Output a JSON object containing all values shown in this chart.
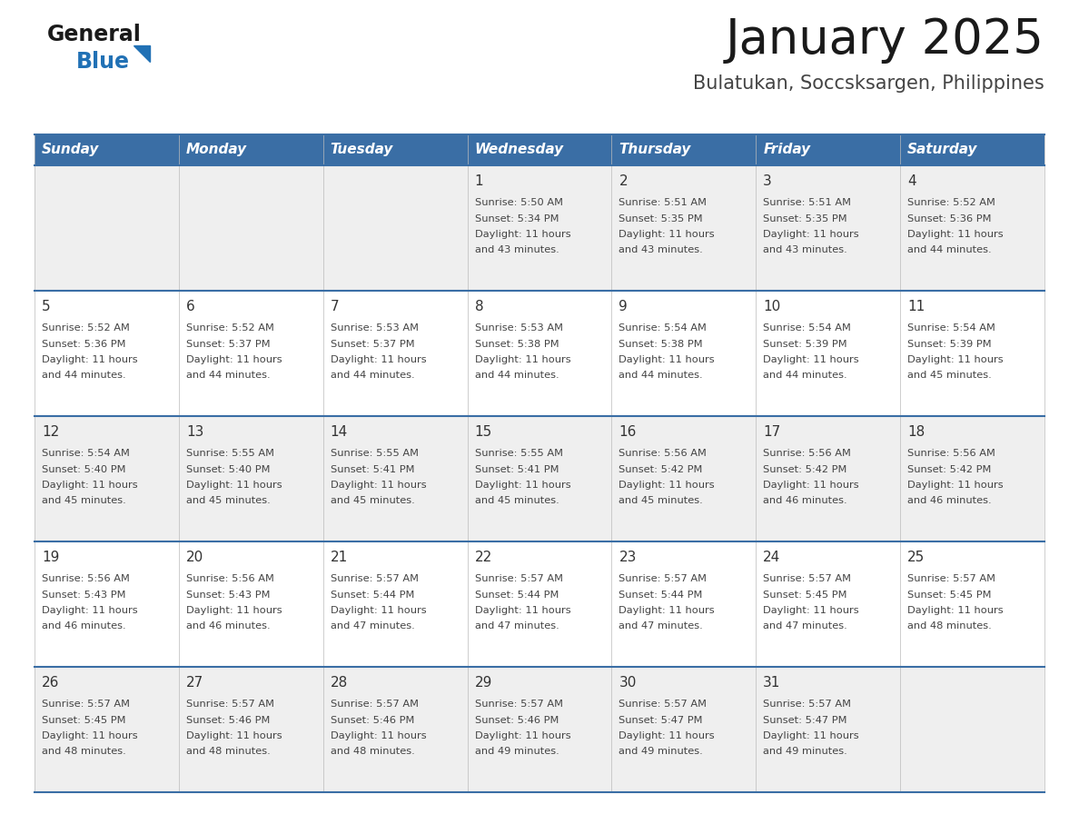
{
  "title": "January 2025",
  "subtitle": "Bulatukan, Soccsksargen, Philippines",
  "header_bg_color": "#3A6EA5",
  "header_text_color": "#FFFFFF",
  "days_of_week": [
    "Sunday",
    "Monday",
    "Tuesday",
    "Wednesday",
    "Thursday",
    "Friday",
    "Saturday"
  ],
  "row_bg_colors": [
    "#EFEFEF",
    "#FFFFFF",
    "#EFEFEF",
    "#FFFFFF",
    "#EFEFEF"
  ],
  "divider_color": "#3A6EA5",
  "date_text_color": "#333333",
  "info_text_color": "#444444",
  "calendar": [
    [
      {
        "day": null
      },
      {
        "day": null
      },
      {
        "day": null
      },
      {
        "day": 1,
        "sunrise": "5:50 AM",
        "sunset": "5:34 PM",
        "daylight": "11 hours and 43 minutes."
      },
      {
        "day": 2,
        "sunrise": "5:51 AM",
        "sunset": "5:35 PM",
        "daylight": "11 hours and 43 minutes."
      },
      {
        "day": 3,
        "sunrise": "5:51 AM",
        "sunset": "5:35 PM",
        "daylight": "11 hours and 43 minutes."
      },
      {
        "day": 4,
        "sunrise": "5:52 AM",
        "sunset": "5:36 PM",
        "daylight": "11 hours and 44 minutes."
      }
    ],
    [
      {
        "day": 5,
        "sunrise": "5:52 AM",
        "sunset": "5:36 PM",
        "daylight": "11 hours and 44 minutes."
      },
      {
        "day": 6,
        "sunrise": "5:52 AM",
        "sunset": "5:37 PM",
        "daylight": "11 hours and 44 minutes."
      },
      {
        "day": 7,
        "sunrise": "5:53 AM",
        "sunset": "5:37 PM",
        "daylight": "11 hours and 44 minutes."
      },
      {
        "day": 8,
        "sunrise": "5:53 AM",
        "sunset": "5:38 PM",
        "daylight": "11 hours and 44 minutes."
      },
      {
        "day": 9,
        "sunrise": "5:54 AM",
        "sunset": "5:38 PM",
        "daylight": "11 hours and 44 minutes."
      },
      {
        "day": 10,
        "sunrise": "5:54 AM",
        "sunset": "5:39 PM",
        "daylight": "11 hours and 44 minutes."
      },
      {
        "day": 11,
        "sunrise": "5:54 AM",
        "sunset": "5:39 PM",
        "daylight": "11 hours and 45 minutes."
      }
    ],
    [
      {
        "day": 12,
        "sunrise": "5:54 AM",
        "sunset": "5:40 PM",
        "daylight": "11 hours and 45 minutes."
      },
      {
        "day": 13,
        "sunrise": "5:55 AM",
        "sunset": "5:40 PM",
        "daylight": "11 hours and 45 minutes."
      },
      {
        "day": 14,
        "sunrise": "5:55 AM",
        "sunset": "5:41 PM",
        "daylight": "11 hours and 45 minutes."
      },
      {
        "day": 15,
        "sunrise": "5:55 AM",
        "sunset": "5:41 PM",
        "daylight": "11 hours and 45 minutes."
      },
      {
        "day": 16,
        "sunrise": "5:56 AM",
        "sunset": "5:42 PM",
        "daylight": "11 hours and 45 minutes."
      },
      {
        "day": 17,
        "sunrise": "5:56 AM",
        "sunset": "5:42 PM",
        "daylight": "11 hours and 46 minutes."
      },
      {
        "day": 18,
        "sunrise": "5:56 AM",
        "sunset": "5:42 PM",
        "daylight": "11 hours and 46 minutes."
      }
    ],
    [
      {
        "day": 19,
        "sunrise": "5:56 AM",
        "sunset": "5:43 PM",
        "daylight": "11 hours and 46 minutes."
      },
      {
        "day": 20,
        "sunrise": "5:56 AM",
        "sunset": "5:43 PM",
        "daylight": "11 hours and 46 minutes."
      },
      {
        "day": 21,
        "sunrise": "5:57 AM",
        "sunset": "5:44 PM",
        "daylight": "11 hours and 47 minutes."
      },
      {
        "day": 22,
        "sunrise": "5:57 AM",
        "sunset": "5:44 PM",
        "daylight": "11 hours and 47 minutes."
      },
      {
        "day": 23,
        "sunrise": "5:57 AM",
        "sunset": "5:44 PM",
        "daylight": "11 hours and 47 minutes."
      },
      {
        "day": 24,
        "sunrise": "5:57 AM",
        "sunset": "5:45 PM",
        "daylight": "11 hours and 47 minutes."
      },
      {
        "day": 25,
        "sunrise": "5:57 AM",
        "sunset": "5:45 PM",
        "daylight": "11 hours and 48 minutes."
      }
    ],
    [
      {
        "day": 26,
        "sunrise": "5:57 AM",
        "sunset": "5:45 PM",
        "daylight": "11 hours and 48 minutes."
      },
      {
        "day": 27,
        "sunrise": "5:57 AM",
        "sunset": "5:46 PM",
        "daylight": "11 hours and 48 minutes."
      },
      {
        "day": 28,
        "sunrise": "5:57 AM",
        "sunset": "5:46 PM",
        "daylight": "11 hours and 48 minutes."
      },
      {
        "day": 29,
        "sunrise": "5:57 AM",
        "sunset": "5:46 PM",
        "daylight": "11 hours and 49 minutes."
      },
      {
        "day": 30,
        "sunrise": "5:57 AM",
        "sunset": "5:47 PM",
        "daylight": "11 hours and 49 minutes."
      },
      {
        "day": 31,
        "sunrise": "5:57 AM",
        "sunset": "5:47 PM",
        "daylight": "11 hours and 49 minutes."
      },
      {
        "day": null
      }
    ]
  ],
  "logo_color_general": "#1a1a1a",
  "logo_color_blue": "#2171B5",
  "logo_triangle_color": "#2171B5",
  "fig_width": 11.88,
  "fig_height": 9.18,
  "dpi": 100
}
